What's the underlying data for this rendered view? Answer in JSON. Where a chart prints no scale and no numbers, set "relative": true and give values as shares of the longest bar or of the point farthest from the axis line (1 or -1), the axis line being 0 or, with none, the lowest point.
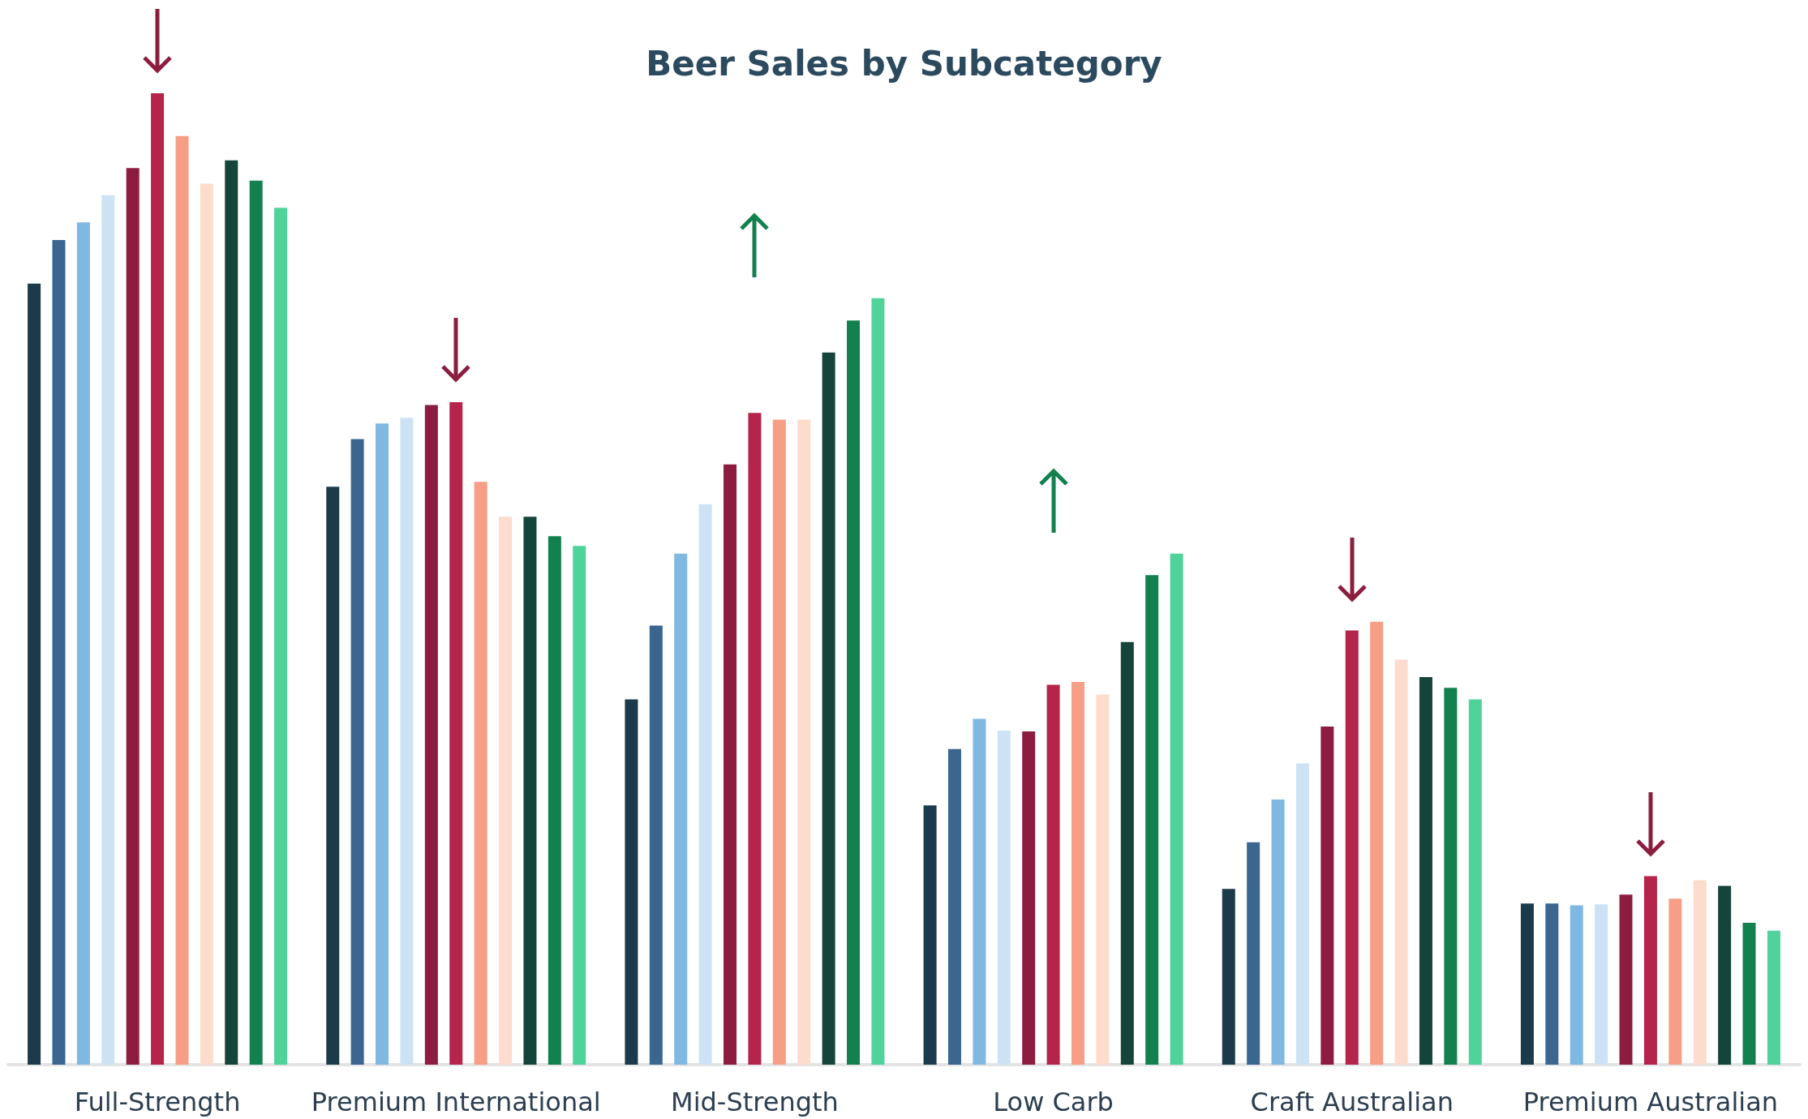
{
  "chart_data": {
    "type": "bar",
    "title": "Beer Sales by Subcategory",
    "relative": true,
    "categories": [
      "Full-Strength",
      "Premium International",
      "Mid-Strength",
      "Low Carb",
      "Craft Australian",
      "Premium Australian"
    ],
    "series": [
      {
        "color": "#1b3a4b",
        "values": [
          0.804,
          0.595,
          0.376,
          0.267,
          0.181,
          0.166
        ]
      },
      {
        "color": "#3a6690",
        "values": [
          0.849,
          0.644,
          0.452,
          0.325,
          0.229,
          0.166
        ]
      },
      {
        "color": "#7fb8e0",
        "values": [
          0.867,
          0.66,
          0.526,
          0.356,
          0.273,
          0.164
        ]
      },
      {
        "color": "#cde3f5",
        "values": [
          0.895,
          0.666,
          0.577,
          0.344,
          0.31,
          0.165
        ]
      },
      {
        "color": "#8c1d40",
        "values": [
          0.923,
          0.679,
          0.618,
          0.343,
          0.348,
          0.175
        ]
      },
      {
        "color": "#b5244b",
        "values": [
          1,
          0.682,
          0.671,
          0.391,
          0.447,
          0.194
        ]
      },
      {
        "color": "#f79e86",
        "values": [
          0.956,
          0.6,
          0.664,
          0.394,
          0.456,
          0.171
        ]
      },
      {
        "color": "#fddccd",
        "values": [
          0.907,
          0.564,
          0.664,
          0.381,
          0.417,
          0.19
        ]
      },
      {
        "color": "#15443a",
        "values": [
          0.931,
          0.564,
          0.733,
          0.435,
          0.399,
          0.184
        ]
      },
      {
        "color": "#138050",
        "values": [
          0.91,
          0.544,
          0.766,
          0.504,
          0.388,
          0.146
        ]
      },
      {
        "color": "#4fd39a",
        "values": [
          0.882,
          0.534,
          0.789,
          0.526,
          0.376,
          0.138
        ]
      }
    ]
  }
}
